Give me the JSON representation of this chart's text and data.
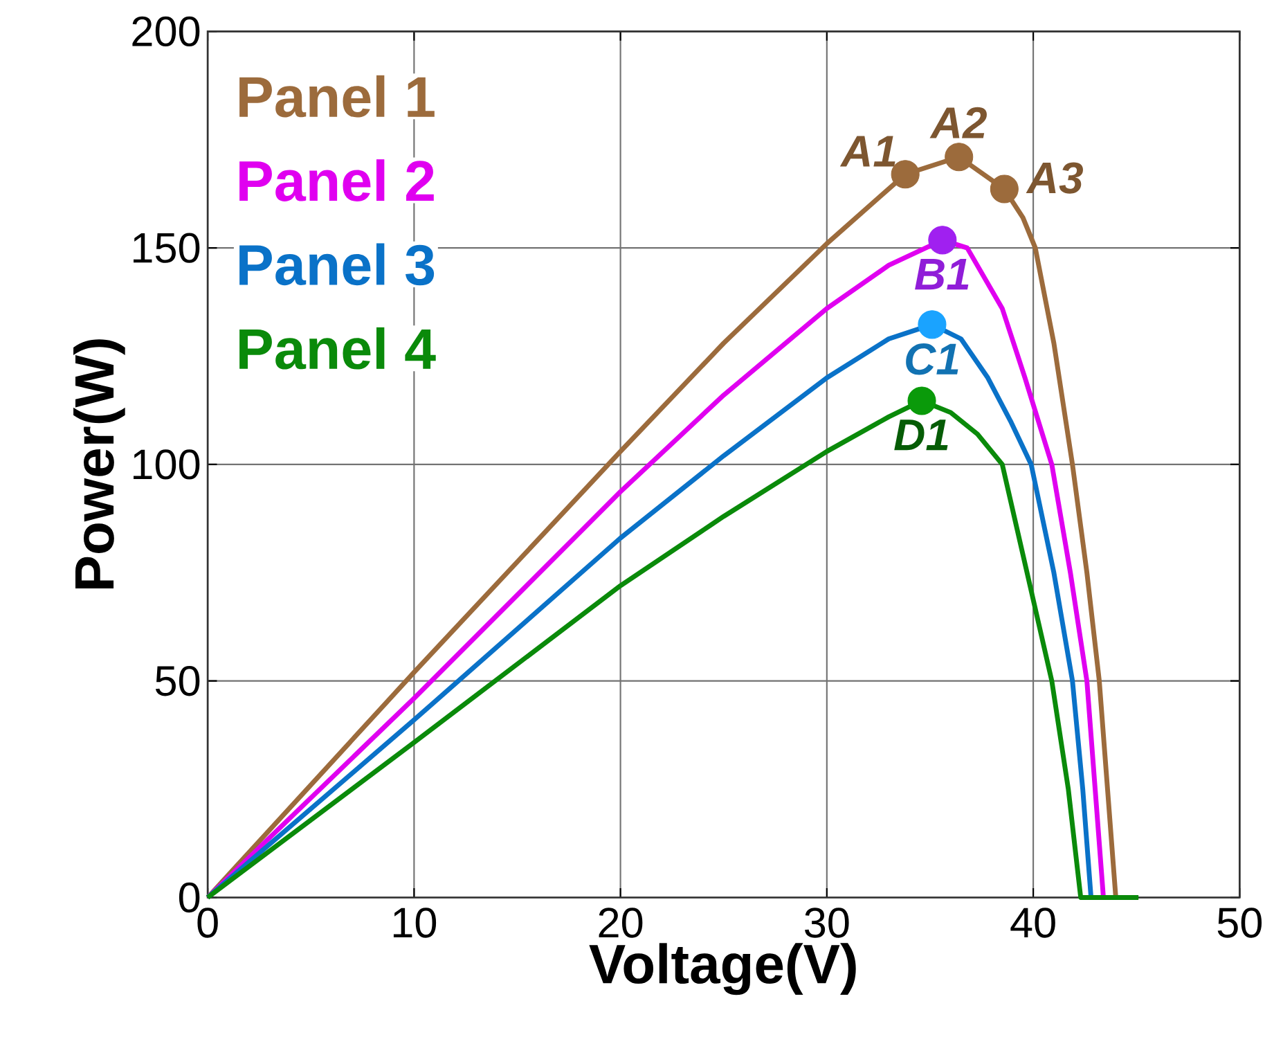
{
  "chart_data": {
    "type": "line",
    "xlabel": "Voltage(V)",
    "ylabel": "Power(W)",
    "xlim": [
      0,
      50
    ],
    "ylim": [
      0,
      200
    ],
    "xticks": [
      0,
      10,
      20,
      30,
      40,
      50
    ],
    "yticks": [
      0,
      50,
      100,
      150,
      200
    ],
    "grid": true,
    "legend": "top left",
    "marker": "none",
    "line_style": "solid",
    "series": [
      {
        "name": "Panel 1",
        "color": "#9c6b3c",
        "x": [
          0,
          10,
          20,
          25,
          30,
          33.8,
          36.4,
          38.6,
          39.5,
          40.1,
          41.0,
          41.9,
          42.6,
          43.2,
          43.6,
          44.0
        ],
        "values": [
          0,
          52,
          103,
          128,
          151,
          167,
          171,
          163.6,
          157,
          150,
          128,
          100,
          75,
          50,
          25,
          0
        ]
      },
      {
        "name": "Panel 2",
        "color": "#e000f0",
        "x": [
          0,
          10,
          20,
          25,
          30,
          33,
          35.6,
          36.8,
          38.5,
          39.6,
          40.9,
          41.8,
          42.6,
          43.0,
          43.4
        ],
        "values": [
          0,
          46,
          93.7,
          116,
          136,
          146,
          151.8,
          150,
          136,
          120,
          100,
          75,
          50,
          25,
          0
        ]
      },
      {
        "name": "Panel 3",
        "color": "#0a72c8",
        "x": [
          0,
          10,
          20,
          25,
          30,
          33,
          35.1,
          36.5,
          37.8,
          38.9,
          39.9,
          41.0,
          41.9,
          42.4,
          42.8
        ],
        "values": [
          0,
          41,
          83,
          102,
          120,
          129,
          132.3,
          129,
          120,
          110,
          100,
          75,
          50,
          25,
          0
        ]
      },
      {
        "name": "Panel 4",
        "color": "#0a8a0a",
        "x": [
          0,
          10,
          20,
          25,
          30,
          33,
          34.6,
          36.0,
          37.3,
          38.5,
          39.7,
          40.9,
          41.7,
          42.3,
          45.1
        ],
        "values": [
          0,
          35.8,
          72,
          88,
          103,
          111,
          114.7,
          112,
          107,
          100,
          75,
          50,
          25,
          0,
          0
        ]
      },
      {
        "type": "scatter",
        "marker": "circle",
        "x": [
          33.8,
          36.4,
          38.6,
          35.6,
          35.1,
          34.6
        ],
        "values": [
          167,
          171,
          163.6,
          151.8,
          132.3,
          114.7
        ],
        "colors": [
          "#9c6b3c",
          "#9c6b3c",
          "#9c6b3c",
          "#a020f0",
          "#1aa3ff",
          "#0a9a0a"
        ]
      }
    ],
    "annotations": [
      {
        "text": "A1",
        "x": 33.8,
        "y": 167
      },
      {
        "text": "A2",
        "x": 36.4,
        "y": 171
      },
      {
        "text": "A3",
        "x": 38.6,
        "y": 163.6
      },
      {
        "text": "B1",
        "x": 35.6,
        "y": 151.8
      },
      {
        "text": "C1",
        "x": 35.1,
        "y": 132.3
      },
      {
        "text": "D1",
        "x": 34.6,
        "y": 114.7
      }
    ]
  }
}
